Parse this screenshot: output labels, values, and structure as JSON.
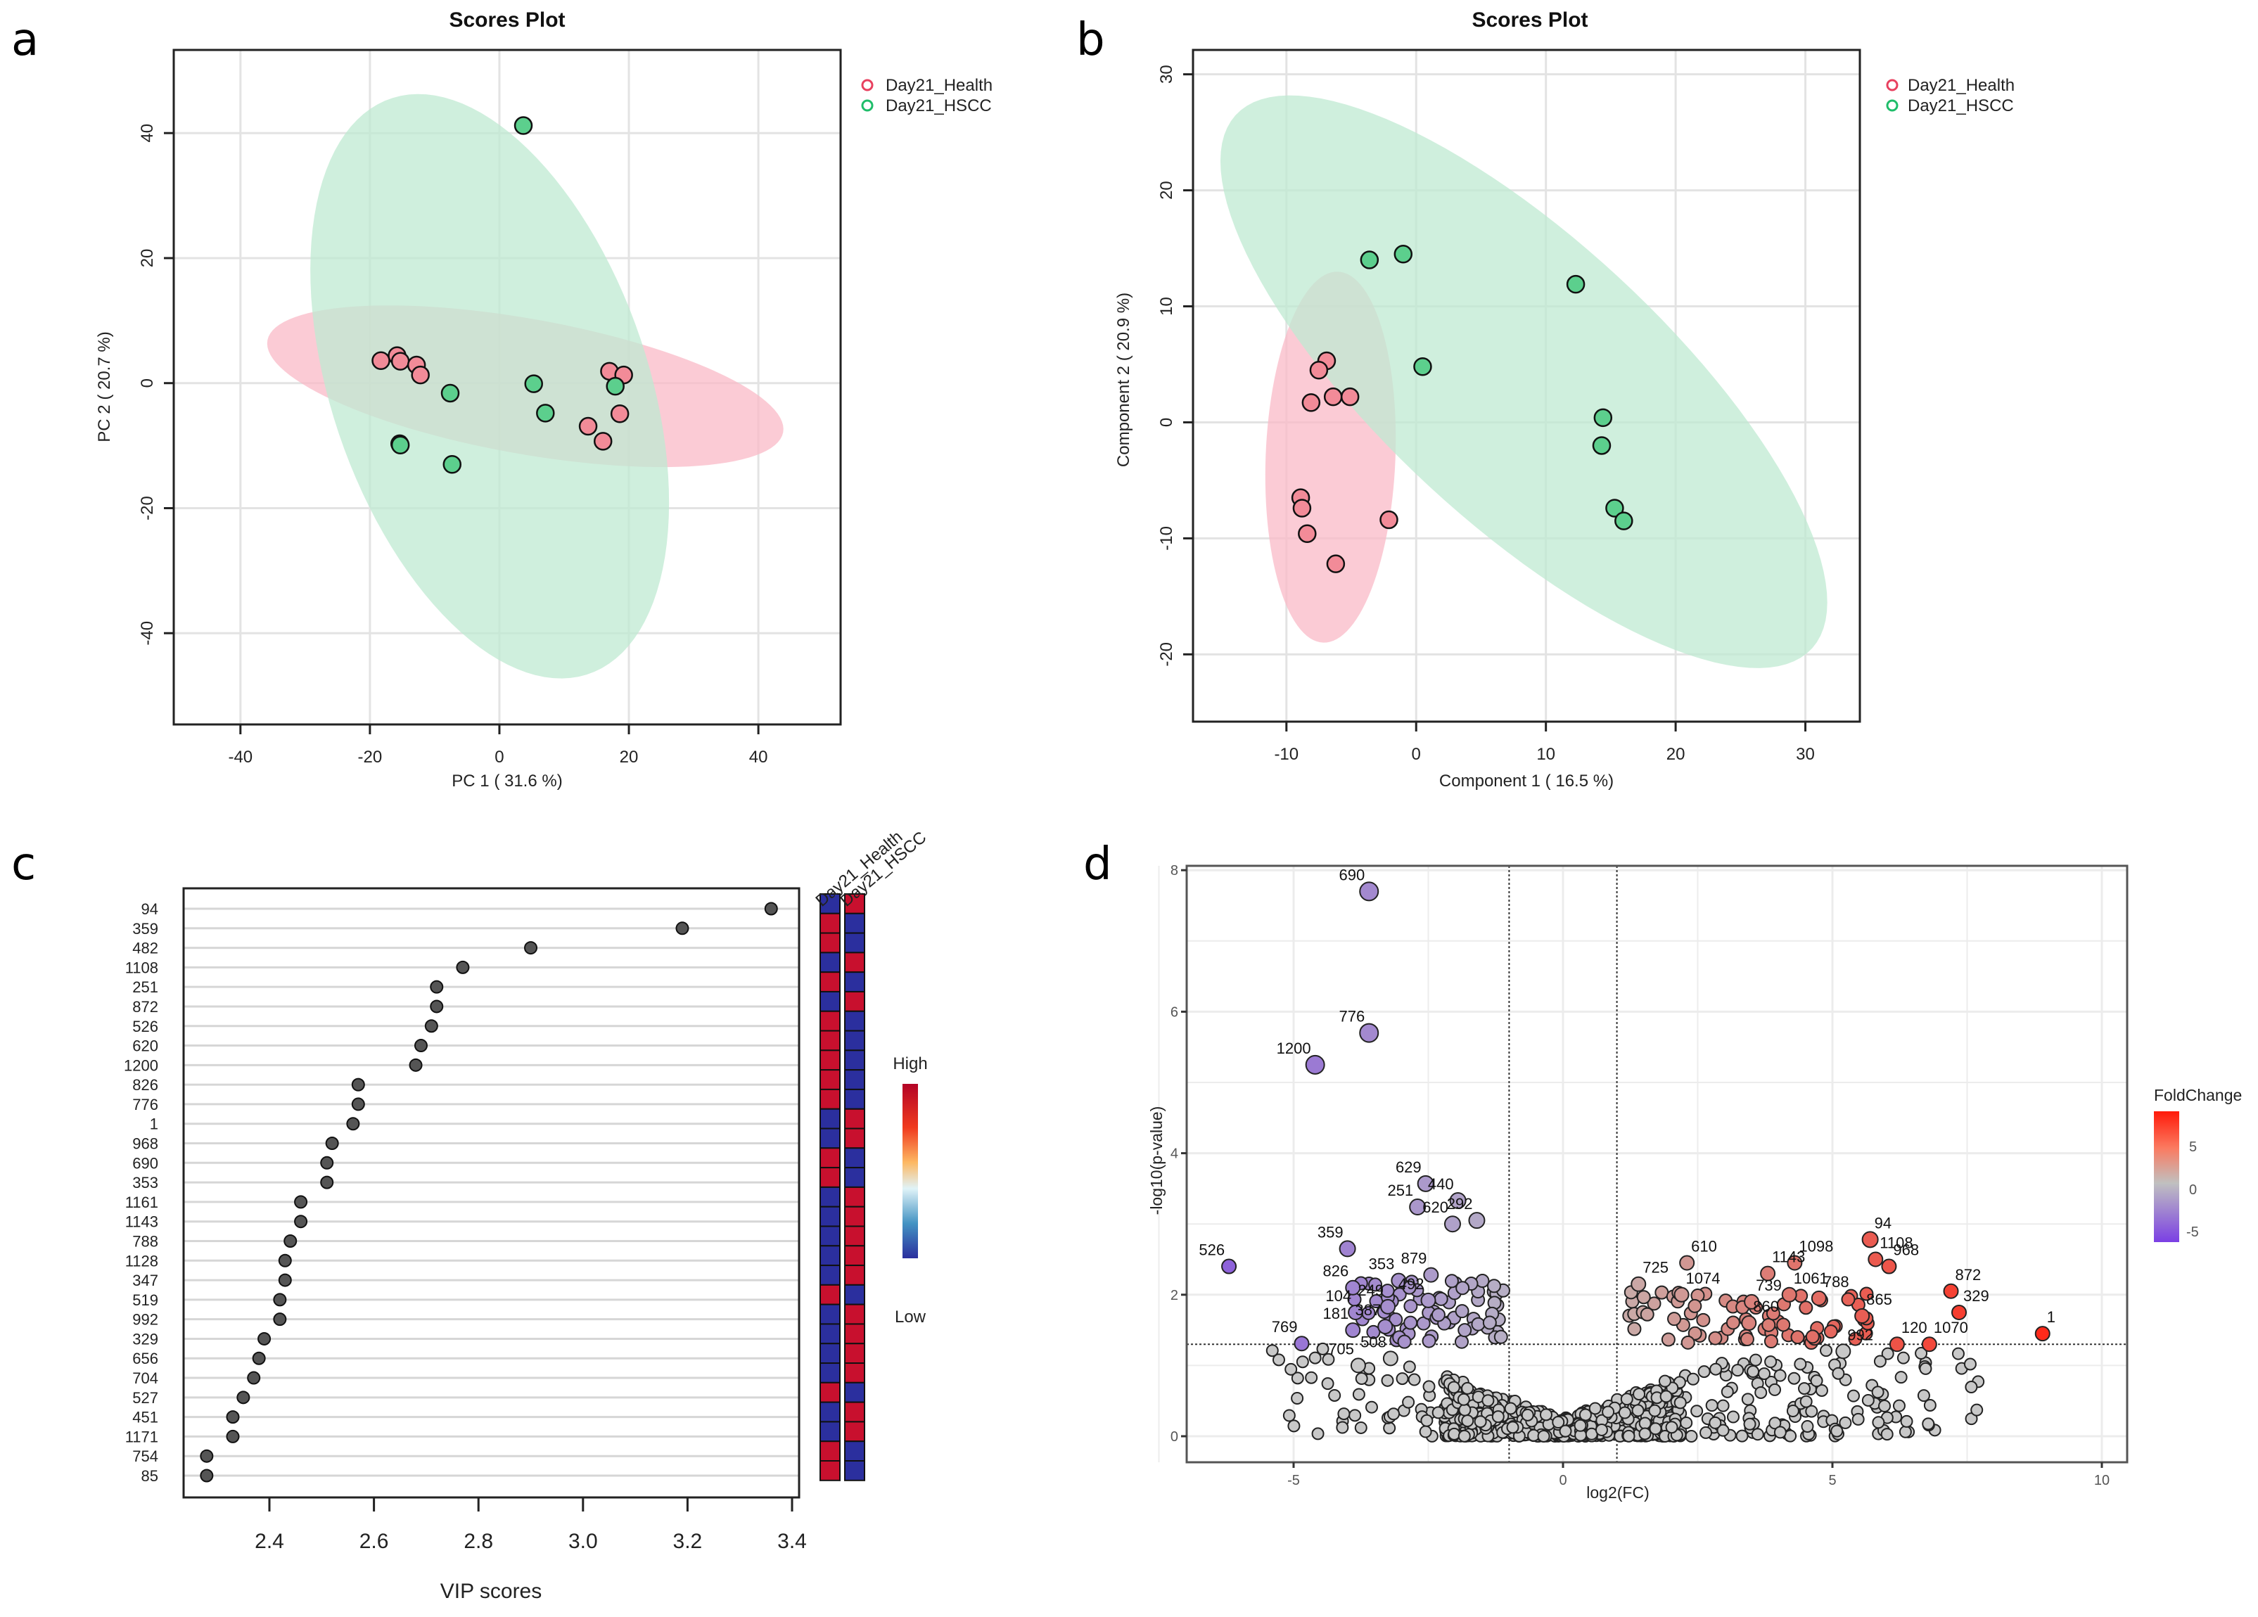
{
  "figure": {
    "panel_letters": [
      "a",
      "b",
      "c",
      "d"
    ]
  },
  "chart_data": [
    {
      "id": "a",
      "type": "scatter",
      "title": "Scores Plot",
      "xlabel": "PC 1 ( 31.6 %)",
      "ylabel": "PC 2 ( 20.7 %)",
      "xlim": [
        -50.3,
        52.7
      ],
      "ylim": [
        -54.6,
        53.3
      ],
      "xticks": [
        -40,
        -20,
        0,
        20,
        40
      ],
      "yticks": [
        -40,
        -20,
        0,
        20,
        40
      ],
      "grid": true,
      "legend": {
        "position": "top-right",
        "entries": [
          {
            "name": "Day21_Health",
            "color": "#e8415f"
          },
          {
            "name": "Day21_HSCC",
            "color": "#1fbd6a"
          }
        ]
      },
      "ellipses": [
        {
          "group": "Day21_Health",
          "center": [
            4,
            -0.5
          ],
          "rx": 40.5,
          "ry": 10.8,
          "angle_deg": -10.5,
          "fill": "#f9b9c7"
        },
        {
          "group": "Day21_HSCC",
          "center": [
            -1.5,
            -0.5
          ],
          "rx": 48.5,
          "ry": 24.5,
          "angle_deg": -72,
          "fill": "#bfe9d1"
        }
      ],
      "series": [
        {
          "name": "Day21_Health",
          "fill": "#f28b98",
          "points": [
            [
              -18.3,
              3.6
            ],
            [
              -15.8,
              4.4
            ],
            [
              -15.3,
              3.5
            ],
            [
              -12.8,
              2.9
            ],
            [
              -12.2,
              1.3
            ],
            [
              17,
              1.9
            ],
            [
              19.2,
              1.3
            ],
            [
              18.6,
              -4.9
            ],
            [
              13.7,
              -6.9
            ],
            [
              16,
              -9.3
            ]
          ]
        },
        {
          "name": "Day21_HSCC",
          "fill": "#5ccf8d",
          "points": [
            [
              3.7,
              41.2
            ],
            [
              -7.6,
              -1.6
            ],
            [
              5.3,
              -0.1
            ],
            [
              7.1,
              -4.8
            ],
            [
              17.9,
              -0.5
            ],
            [
              -15.4,
              -9.7
            ],
            [
              -15.3,
              -9.9
            ],
            [
              -7.3,
              -13
            ]
          ]
        }
      ]
    },
    {
      "id": "b",
      "type": "scatter",
      "title": "Scores Plot",
      "xlabel": "Component 1 ( 16.5 %)",
      "ylabel": "Component 2 ( 20.9 %)",
      "xlim": [
        -17.2,
        34.2
      ],
      "ylim": [
        -25.8,
        32.1
      ],
      "xticks": [
        -10,
        0,
        10,
        20,
        30
      ],
      "yticks": [
        -20,
        -10,
        0,
        10,
        20,
        30
      ],
      "grid": true,
      "legend": {
        "position": "top-right",
        "entries": [
          {
            "name": "Day21_Health",
            "color": "#e8415f"
          },
          {
            "name": "Day21_HSCC",
            "color": "#1fbd6a"
          }
        ]
      },
      "ellipses": [
        {
          "group": "Day21_Health",
          "center": [
            -6.6,
            -3
          ],
          "rx": 16,
          "ry": 5.0,
          "angle_deg": 88,
          "fill": "#f9b9c7"
        },
        {
          "group": "Day21_HSCC",
          "center": [
            8.3,
            3.5
          ],
          "rx": 32,
          "ry": 11.5,
          "angle_deg": -47,
          "fill": "#bfe9d1"
        }
      ],
      "series": [
        {
          "name": "Day21_Health",
          "fill": "#f28b98",
          "points": [
            [
              -6.9,
              5.3
            ],
            [
              -7.5,
              4.5
            ],
            [
              -8.1,
              1.7
            ],
            [
              -6.4,
              2.2
            ],
            [
              -5.1,
              2.2
            ],
            [
              -8.9,
              -6.5
            ],
            [
              -8.8,
              -7.4
            ],
            [
              -8.4,
              -9.6
            ],
            [
              -2.1,
              -8.4
            ],
            [
              -6.2,
              -12.2
            ]
          ]
        },
        {
          "name": "Day21_HSCC",
          "fill": "#5ccf8d",
          "points": [
            [
              -3.6,
              14
            ],
            [
              -1.0,
              14.5
            ],
            [
              12.3,
              11.9
            ],
            [
              0.5,
              4.8
            ],
            [
              14.4,
              0.4
            ],
            [
              14.3,
              -2.0
            ],
            [
              15.3,
              -7.4
            ],
            [
              16.0,
              -8.5
            ]
          ]
        }
      ]
    },
    {
      "id": "c",
      "type": "scatter",
      "subtype": "vip-dotplot-with-heatmap",
      "xlabel": "VIP scores",
      "xlim": [
        2.26,
        3.42
      ],
      "xticks": [
        2.4,
        2.6,
        2.8,
        3.0,
        3.2,
        3.4
      ],
      "grid": true,
      "categories": [
        "94",
        "359",
        "482",
        "1108",
        "251",
        "872",
        "526",
        "620",
        "1200",
        "826",
        "776",
        "1",
        "968",
        "690",
        "353",
        "1161",
        "1143",
        "788",
        "1128",
        "347",
        "519",
        "992",
        "329",
        "656",
        "704",
        "527",
        "451",
        "1171",
        "754",
        "85"
      ],
      "values": [
        3.36,
        3.19,
        2.9,
        2.77,
        2.72,
        2.72,
        2.71,
        2.69,
        2.68,
        2.57,
        2.57,
        2.56,
        2.52,
        2.51,
        2.51,
        2.46,
        2.46,
        2.44,
        2.43,
        2.43,
        2.42,
        2.42,
        2.39,
        2.38,
        2.37,
        2.35,
        2.33,
        2.33,
        2.28,
        2.28
      ],
      "heatmap": {
        "columns": [
          "Day21_Health",
          "Day21_HSCC"
        ],
        "level_in_health": [
          "low",
          "high",
          "high",
          "low",
          "high",
          "low",
          "high",
          "high",
          "high",
          "high",
          "high",
          "low",
          "low",
          "high",
          "high",
          "low",
          "low",
          "low",
          "low",
          "low",
          "high",
          "low",
          "low",
          "low",
          "low",
          "high",
          "low",
          "low",
          "high",
          "high"
        ],
        "high_color": "#c8102e",
        "low_color": "#2b2f9e",
        "legend": {
          "high_label": "High",
          "low_label": "Low"
        }
      }
    },
    {
      "id": "d",
      "type": "scatter",
      "subtype": "volcano",
      "xlabel": "log2(FC)",
      "ylabel": "-log10(p-value)",
      "xlim": [
        -6.98,
        10.47
      ],
      "ylim": [
        -0.37,
        8.06
      ],
      "xticks": [
        -5,
        0,
        5,
        10
      ],
      "yticks": [
        0,
        2,
        4,
        6,
        8
      ],
      "grid": true,
      "thresholds": {
        "log2fc": [
          -1,
          1
        ],
        "neg_log10_p": 1.3
      },
      "legend": {
        "title": "FoldChange",
        "position": "right",
        "ticks": [
          5,
          0,
          -5
        ],
        "low_color": "#7b3fe4",
        "mid_color": "#c0c0c0",
        "high_color": "#ff2a1a"
      },
      "labeled_points": [
        {
          "label": "690",
          "x": -3.6,
          "y": 7.7
        },
        {
          "label": "776",
          "x": -3.6,
          "y": 5.7
        },
        {
          "label": "1200",
          "x": -4.6,
          "y": 5.25
        },
        {
          "label": "629",
          "x": -2.55,
          "y": 3.57
        },
        {
          "label": "440",
          "x": -1.95,
          "y": 3.33
        },
        {
          "label": "251",
          "x": -2.7,
          "y": 3.24
        },
        {
          "label": "620",
          "x": -2.05,
          "y": 3.0
        },
        {
          "label": "292",
          "x": -1.6,
          "y": 3.05
        },
        {
          "label": "359",
          "x": -4.0,
          "y": 2.65
        },
        {
          "label": "526",
          "x": -6.2,
          "y": 2.4
        },
        {
          "label": "353",
          "x": -3.05,
          "y": 2.2
        },
        {
          "label": "879",
          "x": -2.45,
          "y": 2.28
        },
        {
          "label": "826",
          "x": -3.9,
          "y": 2.1
        },
        {
          "label": "492",
          "x": -2.5,
          "y": 1.92
        },
        {
          "label": "104",
          "x": -3.85,
          "y": 1.75
        },
        {
          "label": "249",
          "x": -3.25,
          "y": 1.83
        },
        {
          "label": "181",
          "x": -3.9,
          "y": 1.5
        },
        {
          "label": "387",
          "x": -3.3,
          "y": 1.55
        },
        {
          "label": "769",
          "x": -4.85,
          "y": 1.31
        },
        {
          "label": "705",
          "x": -3.8,
          "y": 1.0
        },
        {
          "label": "508",
          "x": -3.2,
          "y": 1.1
        },
        {
          "label": "94",
          "x": 5.7,
          "y": 2.78
        },
        {
          "label": "1108",
          "x": 5.8,
          "y": 2.5
        },
        {
          "label": "968",
          "x": 6.05,
          "y": 2.4
        },
        {
          "label": "1098",
          "x": 4.3,
          "y": 2.45
        },
        {
          "label": "1143",
          "x": 3.8,
          "y": 2.3
        },
        {
          "label": "610",
          "x": 2.3,
          "y": 2.45
        },
        {
          "label": "725",
          "x": 1.4,
          "y": 2.15
        },
        {
          "label": "1074",
          "x": 2.2,
          "y": 2.0
        },
        {
          "label": "739",
          "x": 3.5,
          "y": 1.9
        },
        {
          "label": "1061",
          "x": 4.2,
          "y": 2.0
        },
        {
          "label": "788",
          "x": 4.75,
          "y": 1.95
        },
        {
          "label": "860",
          "x": 3.45,
          "y": 1.6
        },
        {
          "label": "865",
          "x": 5.55,
          "y": 1.7
        },
        {
          "label": "872",
          "x": 7.2,
          "y": 2.05
        },
        {
          "label": "329",
          "x": 7.35,
          "y": 1.75
        },
        {
          "label": "1070",
          "x": 6.8,
          "y": 1.3
        },
        {
          "label": "1",
          "x": 8.9,
          "y": 1.45
        },
        {
          "label": "992",
          "x": 5.2,
          "y": 1.2
        },
        {
          "label": "120",
          "x": 6.2,
          "y": 1.3
        }
      ],
      "unlabeled_points_note": "approximately 1000 additional unlabeled features, densest near log2FC 0 and -log10(p) below 1.3"
    }
  ]
}
